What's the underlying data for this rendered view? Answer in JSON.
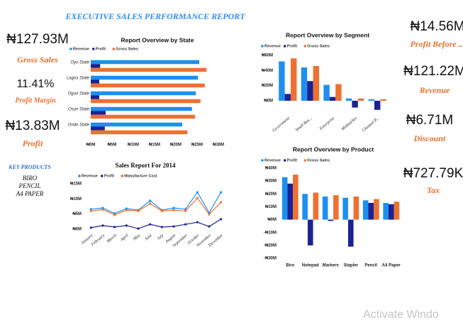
{
  "header": {
    "title": "EXECUTIVE SALES PERFORMANCE REPORT"
  },
  "left_kpis": [
    {
      "value": "₦127.93M",
      "label": "Gross Sales"
    },
    {
      "value": "11.41%",
      "label": "Profit Margin"
    },
    {
      "value": "₦13.83M",
      "label": "Profit"
    }
  ],
  "key_products": {
    "title": "KEY PRODUCTS",
    "items": [
      "BIRO",
      "PENCIL",
      "A4 PAPER"
    ]
  },
  "right_kpis": [
    {
      "value": "₦14.56M",
      "label": "Profit Before ..."
    },
    {
      "value": "₦121.22M",
      "label": "Revenue"
    },
    {
      "value": "₦6.71M",
      "label": "Discount"
    },
    {
      "value": "₦727.79K",
      "label": "Tax"
    }
  ],
  "watermark": "Activate Windo",
  "chart_data": [
    {
      "type": "hbar",
      "title": "Report Overview by State",
      "categories": [
        "Oyo State",
        "Lagos State",
        "Ogun State",
        "Osun State",
        "Ondo State"
      ],
      "series": [
        {
          "name": "Revenue",
          "color": "#1e8fef",
          "values": [
            25.5,
            25.2,
            24.7,
            23.8,
            21.5
          ]
        },
        {
          "name": "Profit",
          "color": "#1c2290",
          "values": [
            2.2,
            2.0,
            2.0,
            3.5,
            3.3
          ]
        },
        {
          "name": "Gross Sales",
          "color": "#ed7132",
          "values": [
            27.2,
            26.8,
            25.8,
            24.5,
            22.7
          ]
        }
      ],
      "xlim": [
        0,
        30
      ],
      "xticks": [
        {
          "value": 0,
          "label": "₦0M"
        },
        {
          "value": 5,
          "label": "₦5M"
        },
        {
          "value": 10,
          "label": "₦10M"
        },
        {
          "value": 15,
          "label": "₦15M"
        },
        {
          "value": 20,
          "label": "₦20M"
        },
        {
          "value": 25,
          "label": "₦25M"
        },
        {
          "value": 30,
          "label": "₦30M"
        }
      ]
    },
    {
      "type": "line",
      "title": "Sales Report For 2014",
      "categories": [
        "January",
        "February",
        "March",
        "April",
        "May",
        "June",
        "July",
        "August",
        "September",
        "October",
        "November",
        "December"
      ],
      "series": [
        {
          "name": "Revenue",
          "color": "#1e8fef",
          "values": [
            6.6,
            7.0,
            5.2,
            6.8,
            6.3,
            9.4,
            6.3,
            7.0,
            6.6,
            12.2,
            5.4,
            12.2
          ]
        },
        {
          "name": "Profit",
          "color": "#1c2290",
          "values": [
            0.5,
            1.2,
            0.7,
            1.2,
            0.2,
            1.6,
            0.7,
            0.9,
            1.6,
            2.3,
            0.9,
            3.3
          ]
        },
        {
          "name": "Manufacture Cost",
          "color": "#ed7132",
          "values": [
            6.0,
            6.5,
            4.7,
            6.3,
            6.0,
            8.4,
            6.0,
            6.3,
            6.0,
            10.3,
            4.9,
            8.9
          ]
        }
      ],
      "ylim": [
        0,
        15
      ],
      "yticks": [
        {
          "value": 0,
          "label": "₦0M"
        },
        {
          "value": 5,
          "label": "₦5M"
        },
        {
          "value": 10,
          "label": "₦10M"
        },
        {
          "value": 15,
          "label": "₦15M"
        }
      ]
    },
    {
      "type": "bar",
      "title": "Report Overview by Segment",
      "categories": [
        "Government",
        "Small Bus...",
        "Enterprise",
        "Midmarket",
        "Channel P..."
      ],
      "series": [
        {
          "name": "Revenue",
          "color": "#1e8fef",
          "values": [
            52,
            44,
            21,
            3,
            2
          ]
        },
        {
          "name": "Profit",
          "color": "#1c2290",
          "values": [
            9,
            26,
            5,
            -9,
            -12
          ]
        },
        {
          "name": "Gross Sales",
          "color": "#ed7132",
          "values": [
            56,
            46,
            22,
            3,
            2
          ]
        }
      ],
      "ylim": [
        -15,
        60
      ],
      "yticks": [
        {
          "value": 0,
          "label": "₦0M"
        },
        {
          "value": 20,
          "label": "₦20M"
        },
        {
          "value": 40,
          "label": "₦40M"
        },
        {
          "value": 60,
          "label": "₦60M"
        }
      ]
    },
    {
      "type": "bar",
      "title": "Report Overview by Product",
      "categories": [
        "Biro",
        "Notepad",
        "Markers",
        "Stapler",
        "Pencil",
        "A4 Paper"
      ],
      "series": [
        {
          "name": "Revenue",
          "color": "#1e8fef",
          "values": [
            33,
            20,
            18,
            17,
            15,
            13
          ]
        },
        {
          "name": "Profit",
          "color": "#1c2290",
          "values": [
            28,
            -20,
            -1,
            -21,
            13,
            12
          ]
        },
        {
          "name": "Gross Sales",
          "color": "#ed7132",
          "values": [
            35,
            21,
            19,
            18,
            16,
            14
          ]
        }
      ],
      "ylim": [
        -30,
        40
      ],
      "yticks": [
        {
          "value": -30,
          "label": "-₦30M"
        },
        {
          "value": -20,
          "label": "-₦20M"
        },
        {
          "value": -10,
          "label": "-₦10M"
        },
        {
          "value": 0,
          "label": "₦0M"
        },
        {
          "value": 10,
          "label": "₦10M"
        },
        {
          "value": 20,
          "label": "₦20M"
        },
        {
          "value": 30,
          "label": "₦30M"
        },
        {
          "value": 40,
          "label": "₦40M"
        }
      ]
    }
  ]
}
